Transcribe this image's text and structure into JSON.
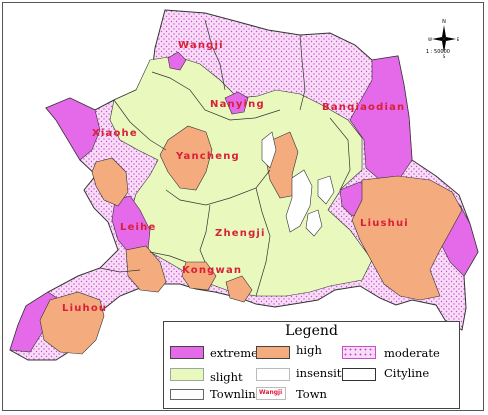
{
  "colors": {
    "extreme": "#e46ae9",
    "high": "#f4ab7e",
    "moderate_bg": "#f8dcf8",
    "moderate_dot": "#c94fc9",
    "slight": "#e9f9bd",
    "insensitive": "#ffffff",
    "cityline": "#333333",
    "town_label": "#d8203a"
  },
  "map": {
    "towns": [
      {
        "name": "Wangji"
      },
      {
        "name": "Nanying"
      },
      {
        "name": "Banqiaodian"
      },
      {
        "name": "Xiaohe"
      },
      {
        "name": "Yancheng"
      },
      {
        "name": "Liushui"
      },
      {
        "name": "Leihe"
      },
      {
        "name": "Zhengji"
      },
      {
        "name": "Kongwan"
      },
      {
        "name": "Liuhou"
      }
    ],
    "compass_icon": "north-arrow-icon",
    "scale_text": "1 : 50000"
  },
  "legend": {
    "title": "Legend",
    "items": [
      {
        "label": "extreme"
      },
      {
        "label": "high"
      },
      {
        "label": "moderate"
      },
      {
        "label": "slight"
      },
      {
        "label": "insensitive"
      },
      {
        "label": "Cityline"
      },
      {
        "label": "Townline"
      },
      {
        "label": "Town",
        "sample": "Wangji"
      }
    ]
  }
}
